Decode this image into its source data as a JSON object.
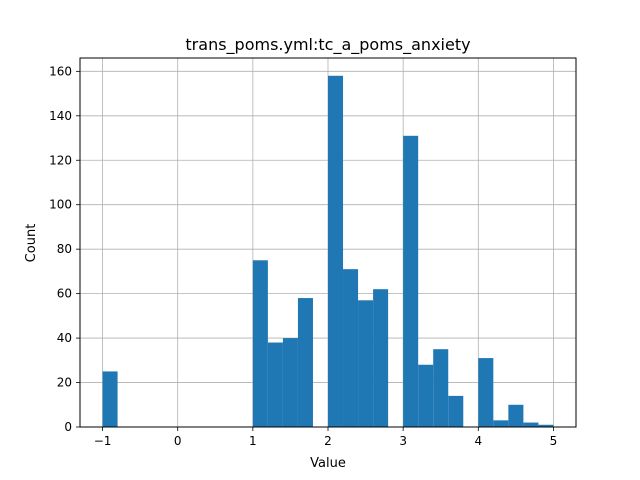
{
  "chart_data": {
    "type": "bar",
    "subtype": "histogram",
    "title": "trans_poms.yml:tc_a_poms_anxiety",
    "xlabel": "Value",
    "ylabel": "Count",
    "xlim": [
      -1.3,
      5.3
    ],
    "ylim": [
      0,
      166
    ],
    "xticks": [
      -1,
      0,
      1,
      2,
      3,
      4,
      5
    ],
    "yticks": [
      0,
      20,
      40,
      60,
      80,
      100,
      120,
      140,
      160
    ],
    "grid": true,
    "bar_color": "#1f77b4",
    "bin_edges": [
      -1.0,
      -0.8,
      -0.6,
      -0.4,
      -0.2,
      0.0,
      0.2,
      0.4,
      0.6,
      0.8,
      1.0,
      1.2,
      1.4,
      1.6,
      1.8,
      2.0,
      2.2,
      2.4,
      2.6,
      2.8,
      3.0,
      3.2,
      3.4,
      3.6,
      3.8,
      4.0,
      4.2,
      4.4,
      4.6,
      4.8,
      5.0
    ],
    "counts": [
      25,
      0,
      0,
      0,
      0,
      0,
      0,
      0,
      0,
      0,
      75,
      38,
      40,
      58,
      0,
      158,
      71,
      57,
      62,
      0,
      131,
      28,
      35,
      14,
      0,
      31,
      3,
      10,
      2,
      1
    ]
  }
}
